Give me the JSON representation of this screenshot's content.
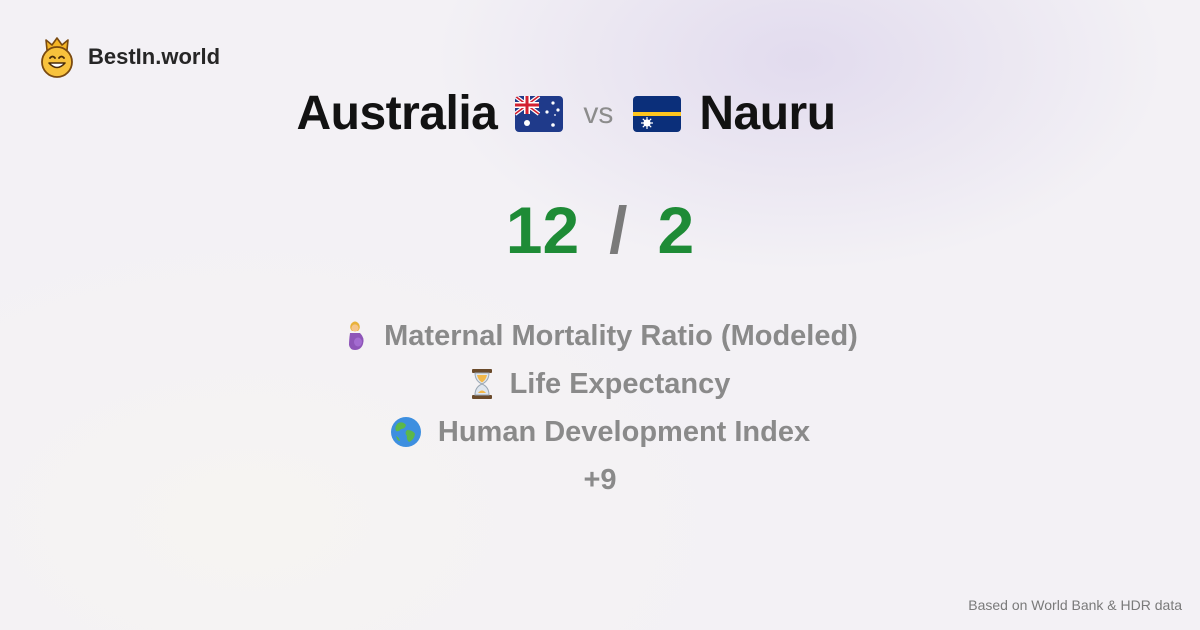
{
  "brand": {
    "name": "BestIn.world",
    "icon": "crowned-smiley-icon"
  },
  "comparison": {
    "country_a": "Australia",
    "flag_a": "australia-flag-icon",
    "vs": "vs",
    "country_b": "Nauru",
    "flag_b": "nauru-flag-icon"
  },
  "score": {
    "a": "12",
    "separator": "/",
    "b": "2",
    "color": "#1e8b36"
  },
  "metrics": [
    {
      "icon": "pregnant-woman-icon",
      "label": "Maternal Mortality Ratio (Modeled)"
    },
    {
      "icon": "hourglass-icon",
      "label": "Life Expectancy"
    },
    {
      "icon": "globe-icon",
      "label": "Human Development Index"
    }
  ],
  "more": "+9",
  "footer": "Based on World Bank & HDR data"
}
